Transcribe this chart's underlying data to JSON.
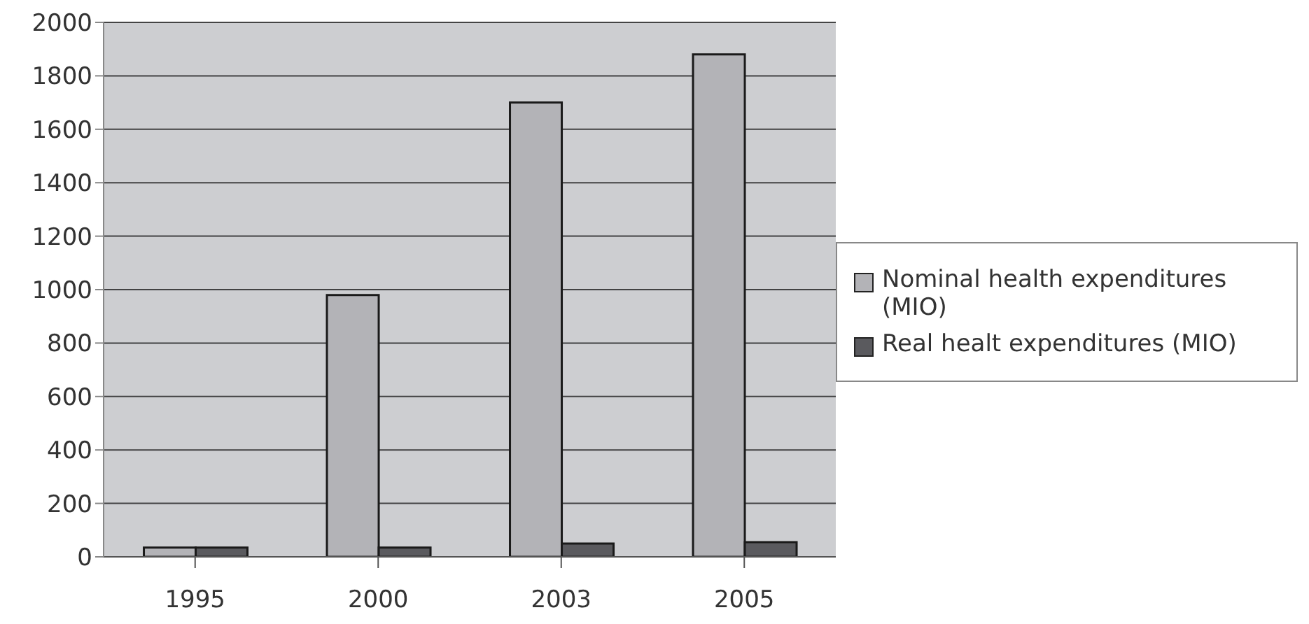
{
  "chart_data": {
    "type": "bar",
    "categories": [
      "1995",
      "2000",
      "2003",
      "2005"
    ],
    "series": [
      {
        "name": "Nominal health expenditures (MIO)",
        "color": "#b3b3b7",
        "values": [
          35,
          980,
          1700,
          1880
        ]
      },
      {
        "name": "Real healt expenditures (MIO)",
        "color": "#5a5a5e",
        "values": [
          35,
          35,
          50,
          55
        ]
      }
    ],
    "ylim": [
      0,
      2000
    ],
    "yticks": [
      0,
      200,
      400,
      600,
      800,
      1000,
      1200,
      1400,
      1600,
      1800,
      2000
    ],
    "grid": "y",
    "legend": "right"
  }
}
